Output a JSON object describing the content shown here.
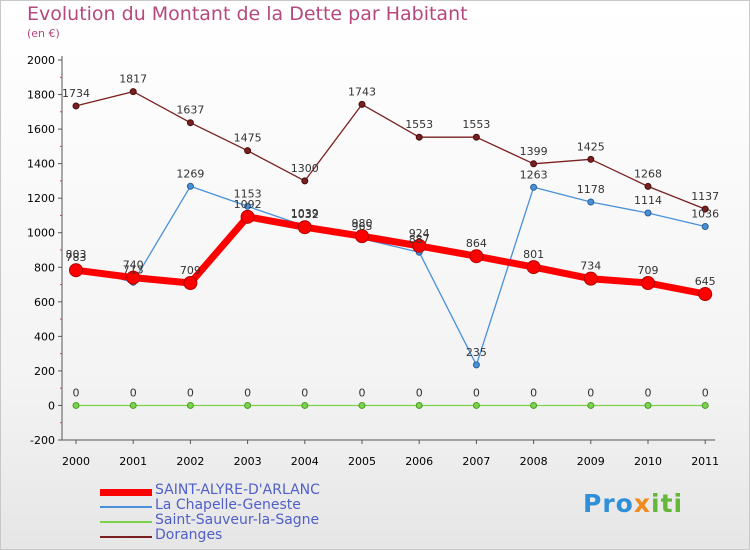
{
  "title": "Evolution du Montant de la Dette par Habitant",
  "subtitle": "(en €)",
  "logo": "Proxiti",
  "chart_data": {
    "type": "line",
    "title": "Evolution du Montant de la Dette par Habitant",
    "subtitle": "(en €)",
    "x": [
      "2000",
      "2001",
      "2002",
      "2003",
      "2004",
      "2005",
      "2006",
      "2007",
      "2008",
      "2009",
      "2010",
      "2011"
    ],
    "yticks": [
      -200,
      0,
      200,
      400,
      600,
      800,
      1000,
      1200,
      1400,
      1600,
      1800,
      2000
    ],
    "ylim": [
      -200,
      2000
    ],
    "grid": false,
    "legend_position": "bottom-left",
    "series": [
      {
        "name": "SAINT-ALYRE-D'ARLANC",
        "color": "#ff0000",
        "values": [
          783,
          740,
          709,
          1092,
          1032,
          980,
          924,
          864,
          801,
          734,
          709,
          645
        ]
      },
      {
        "name": "La Chapelle-Geneste",
        "color": "#4a90d9",
        "values": [
          803,
          713,
          1269,
          1153,
          1039,
          965,
          887,
          235,
          1263,
          1178,
          1114,
          1036
        ]
      },
      {
        "name": "Saint-Sauveur-la-Sagne",
        "color": "#7ad34a",
        "values": [
          0,
          0,
          0,
          0,
          0,
          0,
          0,
          0,
          0,
          0,
          0,
          0
        ]
      },
      {
        "name": "Doranges",
        "color": "#7a2020",
        "values": [
          1734,
          1817,
          1637,
          1475,
          1300,
          1743,
          1553,
          1553,
          1399,
          1425,
          1268,
          1137
        ]
      }
    ]
  }
}
